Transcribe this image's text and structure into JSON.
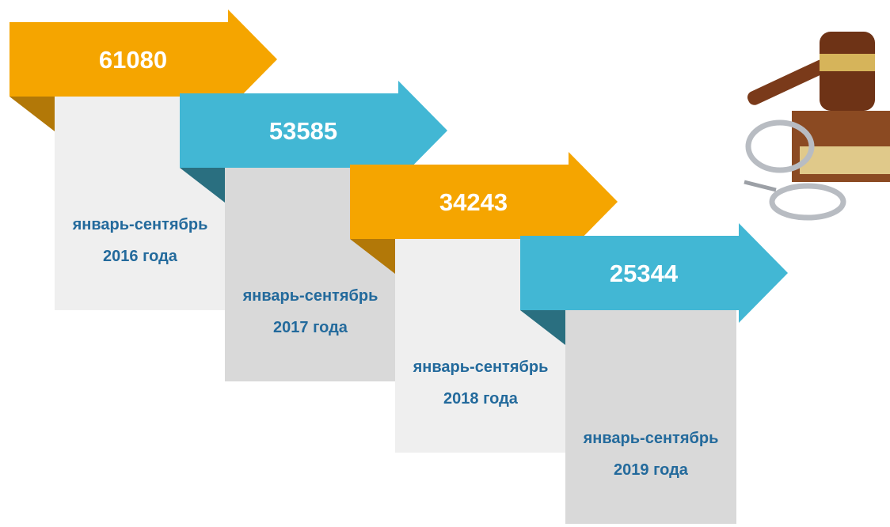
{
  "items": [
    {
      "value": 61080,
      "period": "январь-сентябрь",
      "year": "2016 года"
    },
    {
      "value": 53585,
      "period": "январь-сентябрь",
      "year": "2017 года"
    },
    {
      "value": 34243,
      "period": "январь-сентябрь",
      "year": "2018 года"
    },
    {
      "value": 25344,
      "period": "январь-сентябрь",
      "year": "2019 года"
    }
  ]
}
